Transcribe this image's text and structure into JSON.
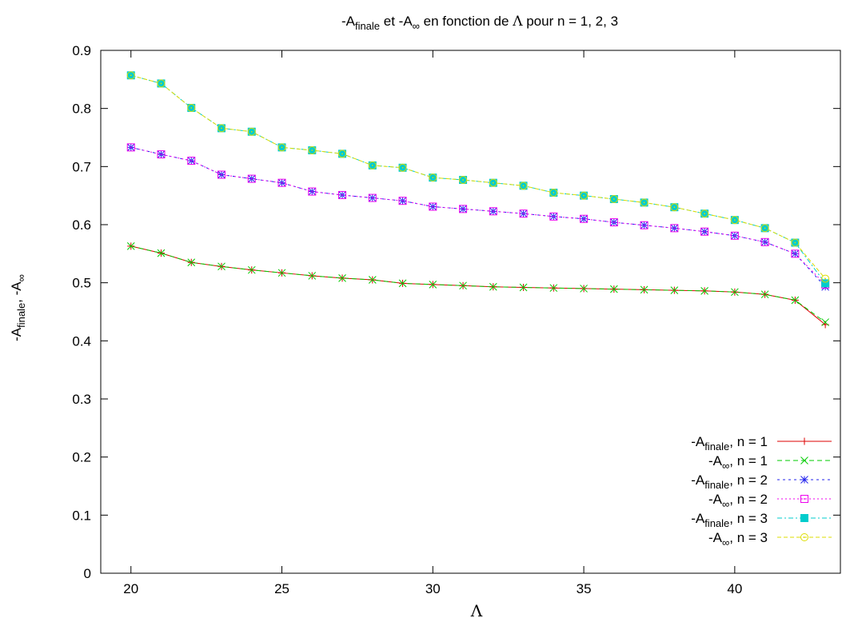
{
  "chart_data": {
    "type": "line",
    "title": {
      "part1": "-A",
      "sub1": "finale",
      "part2": " et -A",
      "sub2": "∞",
      "part3": " en fonction de ",
      "lambda": "Λ",
      "part4": " pour n = 1, 2, 3"
    },
    "xlabel": "Λ",
    "ylabel": {
      "part1": "-A",
      "sub1": "finale",
      "part2": ", -A",
      "sub2": "∞"
    },
    "xlim": [
      19,
      43.5
    ],
    "ylim": [
      0,
      0.9
    ],
    "xticks": [
      "20",
      "25",
      "30",
      "35",
      "40"
    ],
    "yticks": [
      "0",
      "0.1",
      "0.2",
      "0.3",
      "0.4",
      "0.5",
      "0.6",
      "0.7",
      "0.8",
      "0.9"
    ],
    "grid": false,
    "legend_position": "bottom-right",
    "x": [
      20,
      21,
      22,
      23,
      24,
      25,
      26,
      27,
      28,
      29,
      30,
      31,
      32,
      33,
      34,
      35,
      36,
      37,
      38,
      39,
      40,
      41,
      42,
      43
    ],
    "series": [
      {
        "label_prefix": "-A",
        "label_sub": "finale",
        "label_suffix": ", n = 1",
        "color": "#dd0000",
        "dash": "",
        "marker": "plus",
        "values": [
          0.563,
          0.551,
          0.535,
          0.528,
          0.522,
          0.517,
          0.512,
          0.508,
          0.505,
          0.499,
          0.497,
          0.495,
          0.493,
          0.492,
          0.491,
          0.49,
          0.489,
          0.488,
          0.487,
          0.486,
          0.484,
          0.48,
          0.47,
          0.428
        ]
      },
      {
        "label_prefix": "-A",
        "label_sub": "∞",
        "label_suffix": ", n = 1",
        "color": "#00cc00",
        "dash": "6,4",
        "marker": "cross",
        "values": [
          0.563,
          0.551,
          0.535,
          0.528,
          0.522,
          0.517,
          0.512,
          0.508,
          0.505,
          0.499,
          0.497,
          0.495,
          0.493,
          0.492,
          0.491,
          0.49,
          0.489,
          0.488,
          0.487,
          0.486,
          0.484,
          0.48,
          0.47,
          0.432
        ]
      },
      {
        "label_prefix": "-A",
        "label_sub": "finale",
        "label_suffix": ", n = 2",
        "color": "#2020ee",
        "dash": "3,4",
        "marker": "star",
        "values": [
          0.733,
          0.721,
          0.71,
          0.686,
          0.679,
          0.672,
          0.657,
          0.651,
          0.646,
          0.641,
          0.631,
          0.627,
          0.623,
          0.619,
          0.614,
          0.61,
          0.604,
          0.599,
          0.594,
          0.588,
          0.581,
          0.57,
          0.55,
          0.493
        ]
      },
      {
        "label_prefix": "-A",
        "label_sub": "∞",
        "label_suffix": ", n = 2",
        "color": "#ee00ee",
        "dash": "2,3",
        "marker": "square",
        "values": [
          0.733,
          0.721,
          0.71,
          0.686,
          0.679,
          0.672,
          0.657,
          0.651,
          0.646,
          0.641,
          0.631,
          0.627,
          0.623,
          0.619,
          0.614,
          0.61,
          0.604,
          0.599,
          0.594,
          0.588,
          0.581,
          0.57,
          0.55,
          0.497
        ]
      },
      {
        "label_prefix": "-A",
        "label_sub": "finale",
        "label_suffix": ", n = 3",
        "color": "#00cccc",
        "dash": "6,3,2,3",
        "marker": "filled-square",
        "values": [
          0.857,
          0.843,
          0.801,
          0.766,
          0.76,
          0.733,
          0.728,
          0.722,
          0.702,
          0.698,
          0.681,
          0.677,
          0.672,
          0.667,
          0.655,
          0.65,
          0.644,
          0.638,
          0.63,
          0.619,
          0.608,
          0.594,
          0.569,
          0.499
        ]
      },
      {
        "label_prefix": "-A",
        "label_sub": "∞",
        "label_suffix": ", n = 3",
        "color": "#dddd00",
        "dash": "5,3",
        "marker": "circle",
        "values": [
          0.857,
          0.843,
          0.801,
          0.766,
          0.76,
          0.733,
          0.728,
          0.722,
          0.702,
          0.698,
          0.681,
          0.677,
          0.672,
          0.667,
          0.655,
          0.65,
          0.644,
          0.638,
          0.63,
          0.619,
          0.608,
          0.594,
          0.569,
          0.507
        ]
      }
    ]
  }
}
